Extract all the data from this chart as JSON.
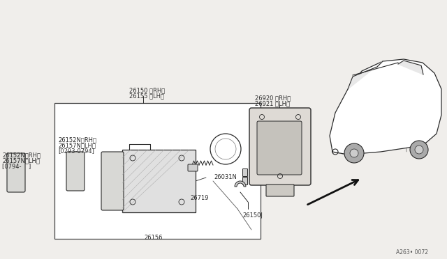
{
  "bg_color": "#f0eeeb",
  "line_color": "#2a2a2a",
  "font_size": 6.5,
  "small_font": 6.0,
  "ref_code": "A263• 0072",
  "labels": {
    "top_rh": "26150 （RH）",
    "top_lh": "26155 （LH）",
    "out_l1": "26152N（RH）",
    "out_l2": "26157N（LH）",
    "out_l3": "[0794-    ]",
    "in_l1": "26152N（RH）",
    "in_l2": "26157N（LH）",
    "in_l3": "[0293-0794]",
    "bot_box": "26156",
    "bulb_socket": "26719",
    "bulb_ring": "26031N",
    "bracket_bot": "26150J",
    "brk_top1": "26920 （RH）",
    "brk_top2": "26921 （LH）"
  }
}
